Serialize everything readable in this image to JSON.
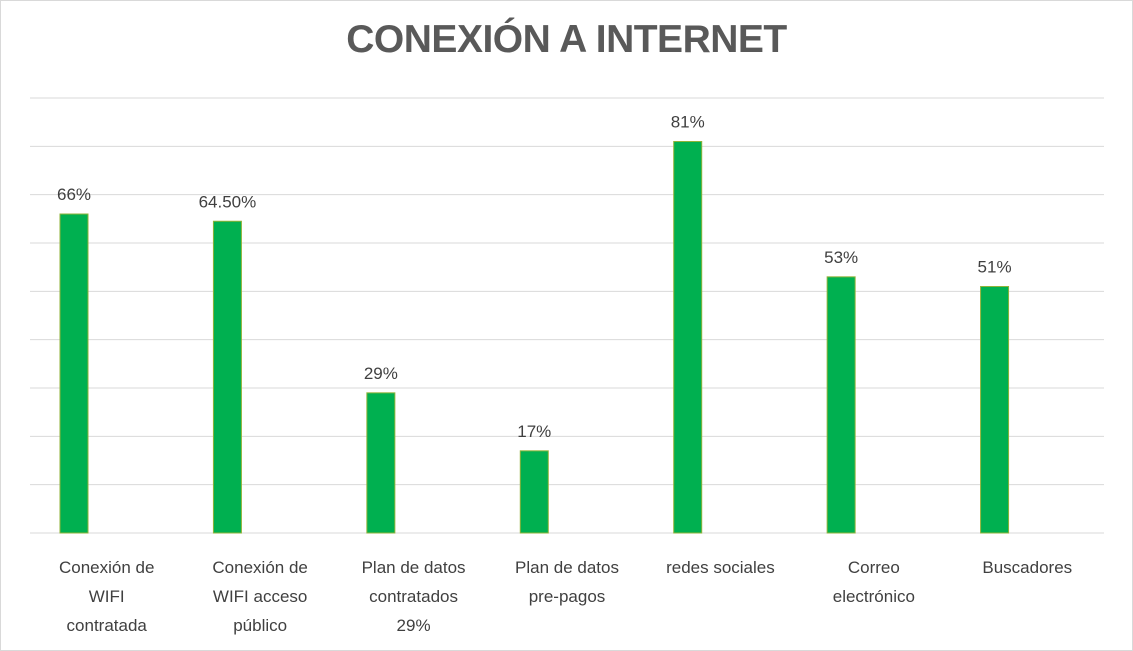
{
  "chart_data": {
    "type": "bar",
    "title": "CONEXIÓN A INTERNET",
    "xlabel": "",
    "ylabel": "",
    "ylim": [
      0,
      90
    ],
    "grid": true,
    "legend": "none",
    "bar_color": "#00b050",
    "bar_border_color": "#8fb339",
    "categories": [
      "Conexión de WIFI contratada",
      "Conexión de WIFI acceso público",
      "Plan de datos contratados 29%",
      "Plan de datos pre-pagos",
      "redes sociales",
      "Correo electrónico",
      "Buscadores"
    ],
    "category_lines": [
      [
        "Conexión de",
        "WIFI",
        "contratada"
      ],
      [
        "Conexión de",
        "WIFI acceso",
        "público"
      ],
      [
        "Plan de datos",
        "contratados",
        "29%"
      ],
      [
        "Plan de datos",
        "pre-pagos"
      ],
      [
        "redes sociales"
      ],
      [
        "Correo",
        "electrónico"
      ],
      [
        "Buscadores"
      ]
    ],
    "values": [
      66,
      64.5,
      29,
      17,
      81,
      53,
      51
    ],
    "data_labels": [
      "66%",
      "64.50%",
      "29%",
      "17%",
      "81%",
      "53%",
      "51%"
    ]
  }
}
